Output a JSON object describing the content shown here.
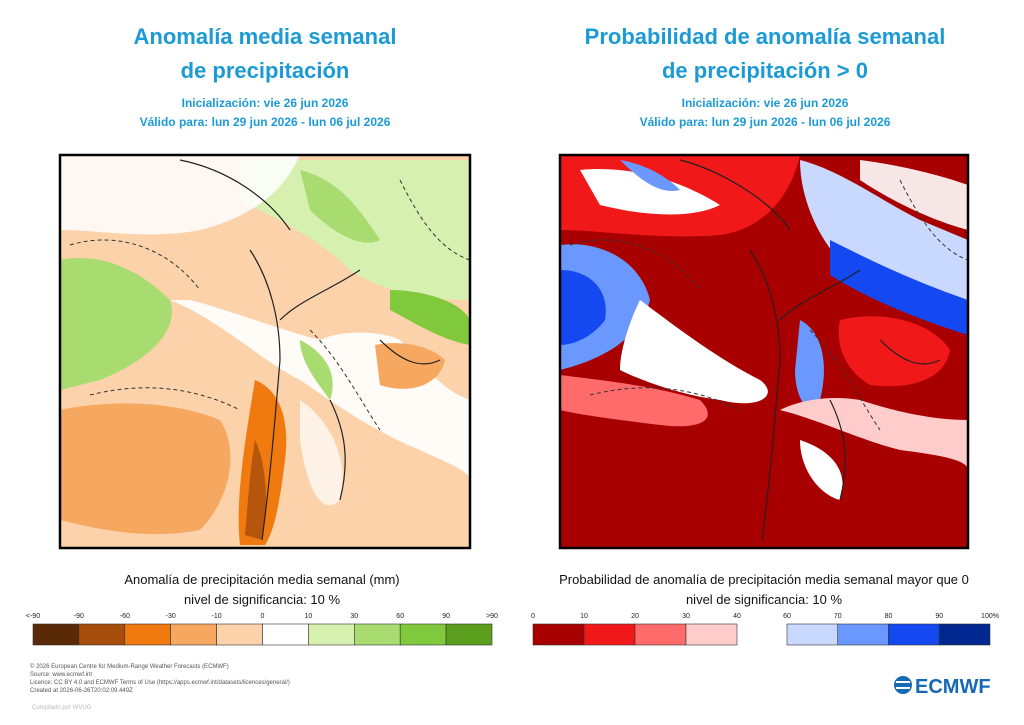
{
  "panels": [
    {
      "title": [
        "Anomalía media semanal",
        "de precipitación"
      ],
      "init": "Inicialización: vie 26 jun 2026",
      "valid": "Válido para: lun 29 jun 2026 - lun 06 jul 2026",
      "legend_title": "Anomalía de precipitación media semanal (mm)",
      "significance": "nivel de significancia: 10 %",
      "colorbar": [
        {
          "ticks": [
            "<-90",
            "-90",
            "-60",
            "-30",
            "-10",
            "0",
            "10",
            "30",
            "60",
            "90",
            ">90"
          ],
          "colors": [
            "#5a2a08",
            "#a84e0c",
            "#f07a10",
            "#f6a860",
            "#fbd2aa",
            "#ffffff",
            "#d6f0b0",
            "#a8dc70",
            "#80c83c",
            "#5c9e1e"
          ]
        }
      ]
    },
    {
      "title": [
        "Probabilidad de anomalía semanal",
        "de precipitación > 0"
      ],
      "init": "Inicialización: vie 26 jun 2026",
      "valid": "Válido para: lun 29 jun 2026 - lun 06 jul 2026",
      "legend_title": "Probabilidad de anomalía de precipitación media semanal mayor que 0",
      "significance": "nivel de significancia: 10 %",
      "colorbar": [
        {
          "ticks": [
            "0",
            "10",
            "20",
            "30",
            "40"
          ],
          "colors": [
            "#a80000",
            "#f01818",
            "#ff6a6a",
            "#ffcccc"
          ]
        },
        {
          "ticks": [
            "60",
            "70",
            "80",
            "90",
            "100%"
          ],
          "colors": [
            "#c8d8ff",
            "#6a98ff",
            "#1448f0",
            "#002890"
          ]
        }
      ]
    }
  ],
  "footer": {
    "lines": [
      "© 2026 European Centre for Medium-Range Weather Forecasts (ECMWF)",
      "Source: www.ecmwf.int",
      "Licence: CC BY 4.0 and ECMWF Terms of Use (https://apps.ecmwf.int/datasets/licences/general/)",
      "Created at 2026-06-26T20:02:09.449Z"
    ],
    "credit": "Compilado por WVUG",
    "logo": "ECMWF"
  }
}
